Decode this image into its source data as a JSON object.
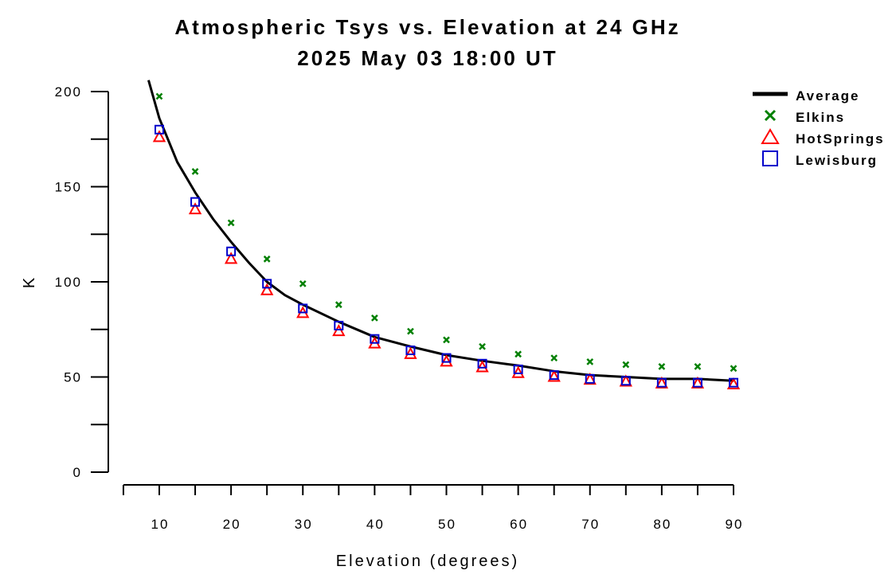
{
  "chart_data": {
    "type": "line",
    "title": "Atmospheric Tsys vs. Elevation at 24 GHz",
    "subtitle": "2025 May 03 18:00 UT",
    "xlabel": "Elevation (degrees)",
    "ylabel": "K",
    "xlim": [
      5,
      90
    ],
    "ylim": [
      0,
      200
    ],
    "xticks": [
      10,
      20,
      30,
      40,
      50,
      60,
      70,
      80,
      90
    ],
    "xtick_labels": [
      "10",
      "20",
      "30",
      "40",
      "50",
      "60",
      "70",
      "80",
      "90"
    ],
    "yticks": [
      0,
      50,
      100,
      150,
      200
    ],
    "ytick_labels": [
      "0",
      "50",
      "100",
      "150",
      "200"
    ],
    "grid": false,
    "legend_position": "top-right",
    "x": [
      10,
      15,
      20,
      25,
      30,
      35,
      40,
      45,
      50,
      55,
      60,
      65,
      70,
      75,
      80,
      85,
      90
    ],
    "series": [
      {
        "name": "Average",
        "marker": "line",
        "color": "#000000",
        "x": [
          8.5,
          10,
          12.5,
          15,
          17.5,
          20,
          22.5,
          25,
          27.5,
          30,
          35,
          40,
          45,
          50,
          55,
          60,
          65,
          70,
          75,
          80,
          85,
          90
        ],
        "values": [
          206,
          186,
          163,
          147,
          133,
          121,
          110,
          100,
          93,
          88,
          79,
          71,
          66,
          61.5,
          58.5,
          56,
          53,
          51,
          50,
          49,
          49,
          48
        ]
      },
      {
        "name": "Elkins",
        "marker": "x",
        "color": "#008000",
        "values": [
          197.5,
          158,
          131,
          112,
          99,
          88,
          81,
          74,
          69.5,
          66,
          62,
          60,
          58,
          56.5,
          55.5,
          55.5,
          54.5
        ]
      },
      {
        "name": "HotSprings",
        "marker": "triangle",
        "color": "#ff0000",
        "values": [
          176,
          138,
          112,
          95.5,
          83.5,
          74,
          67.5,
          62,
          58,
          55,
          52,
          50,
          48.5,
          47.5,
          46.5,
          46.5,
          46
        ]
      },
      {
        "name": "Lewisburg",
        "marker": "square",
        "color": "#0000cc",
        "values": [
          180,
          142,
          116,
          99,
          86,
          77,
          70,
          64,
          60,
          57,
          54,
          51,
          49,
          48,
          47,
          47,
          47
        ]
      }
    ]
  }
}
